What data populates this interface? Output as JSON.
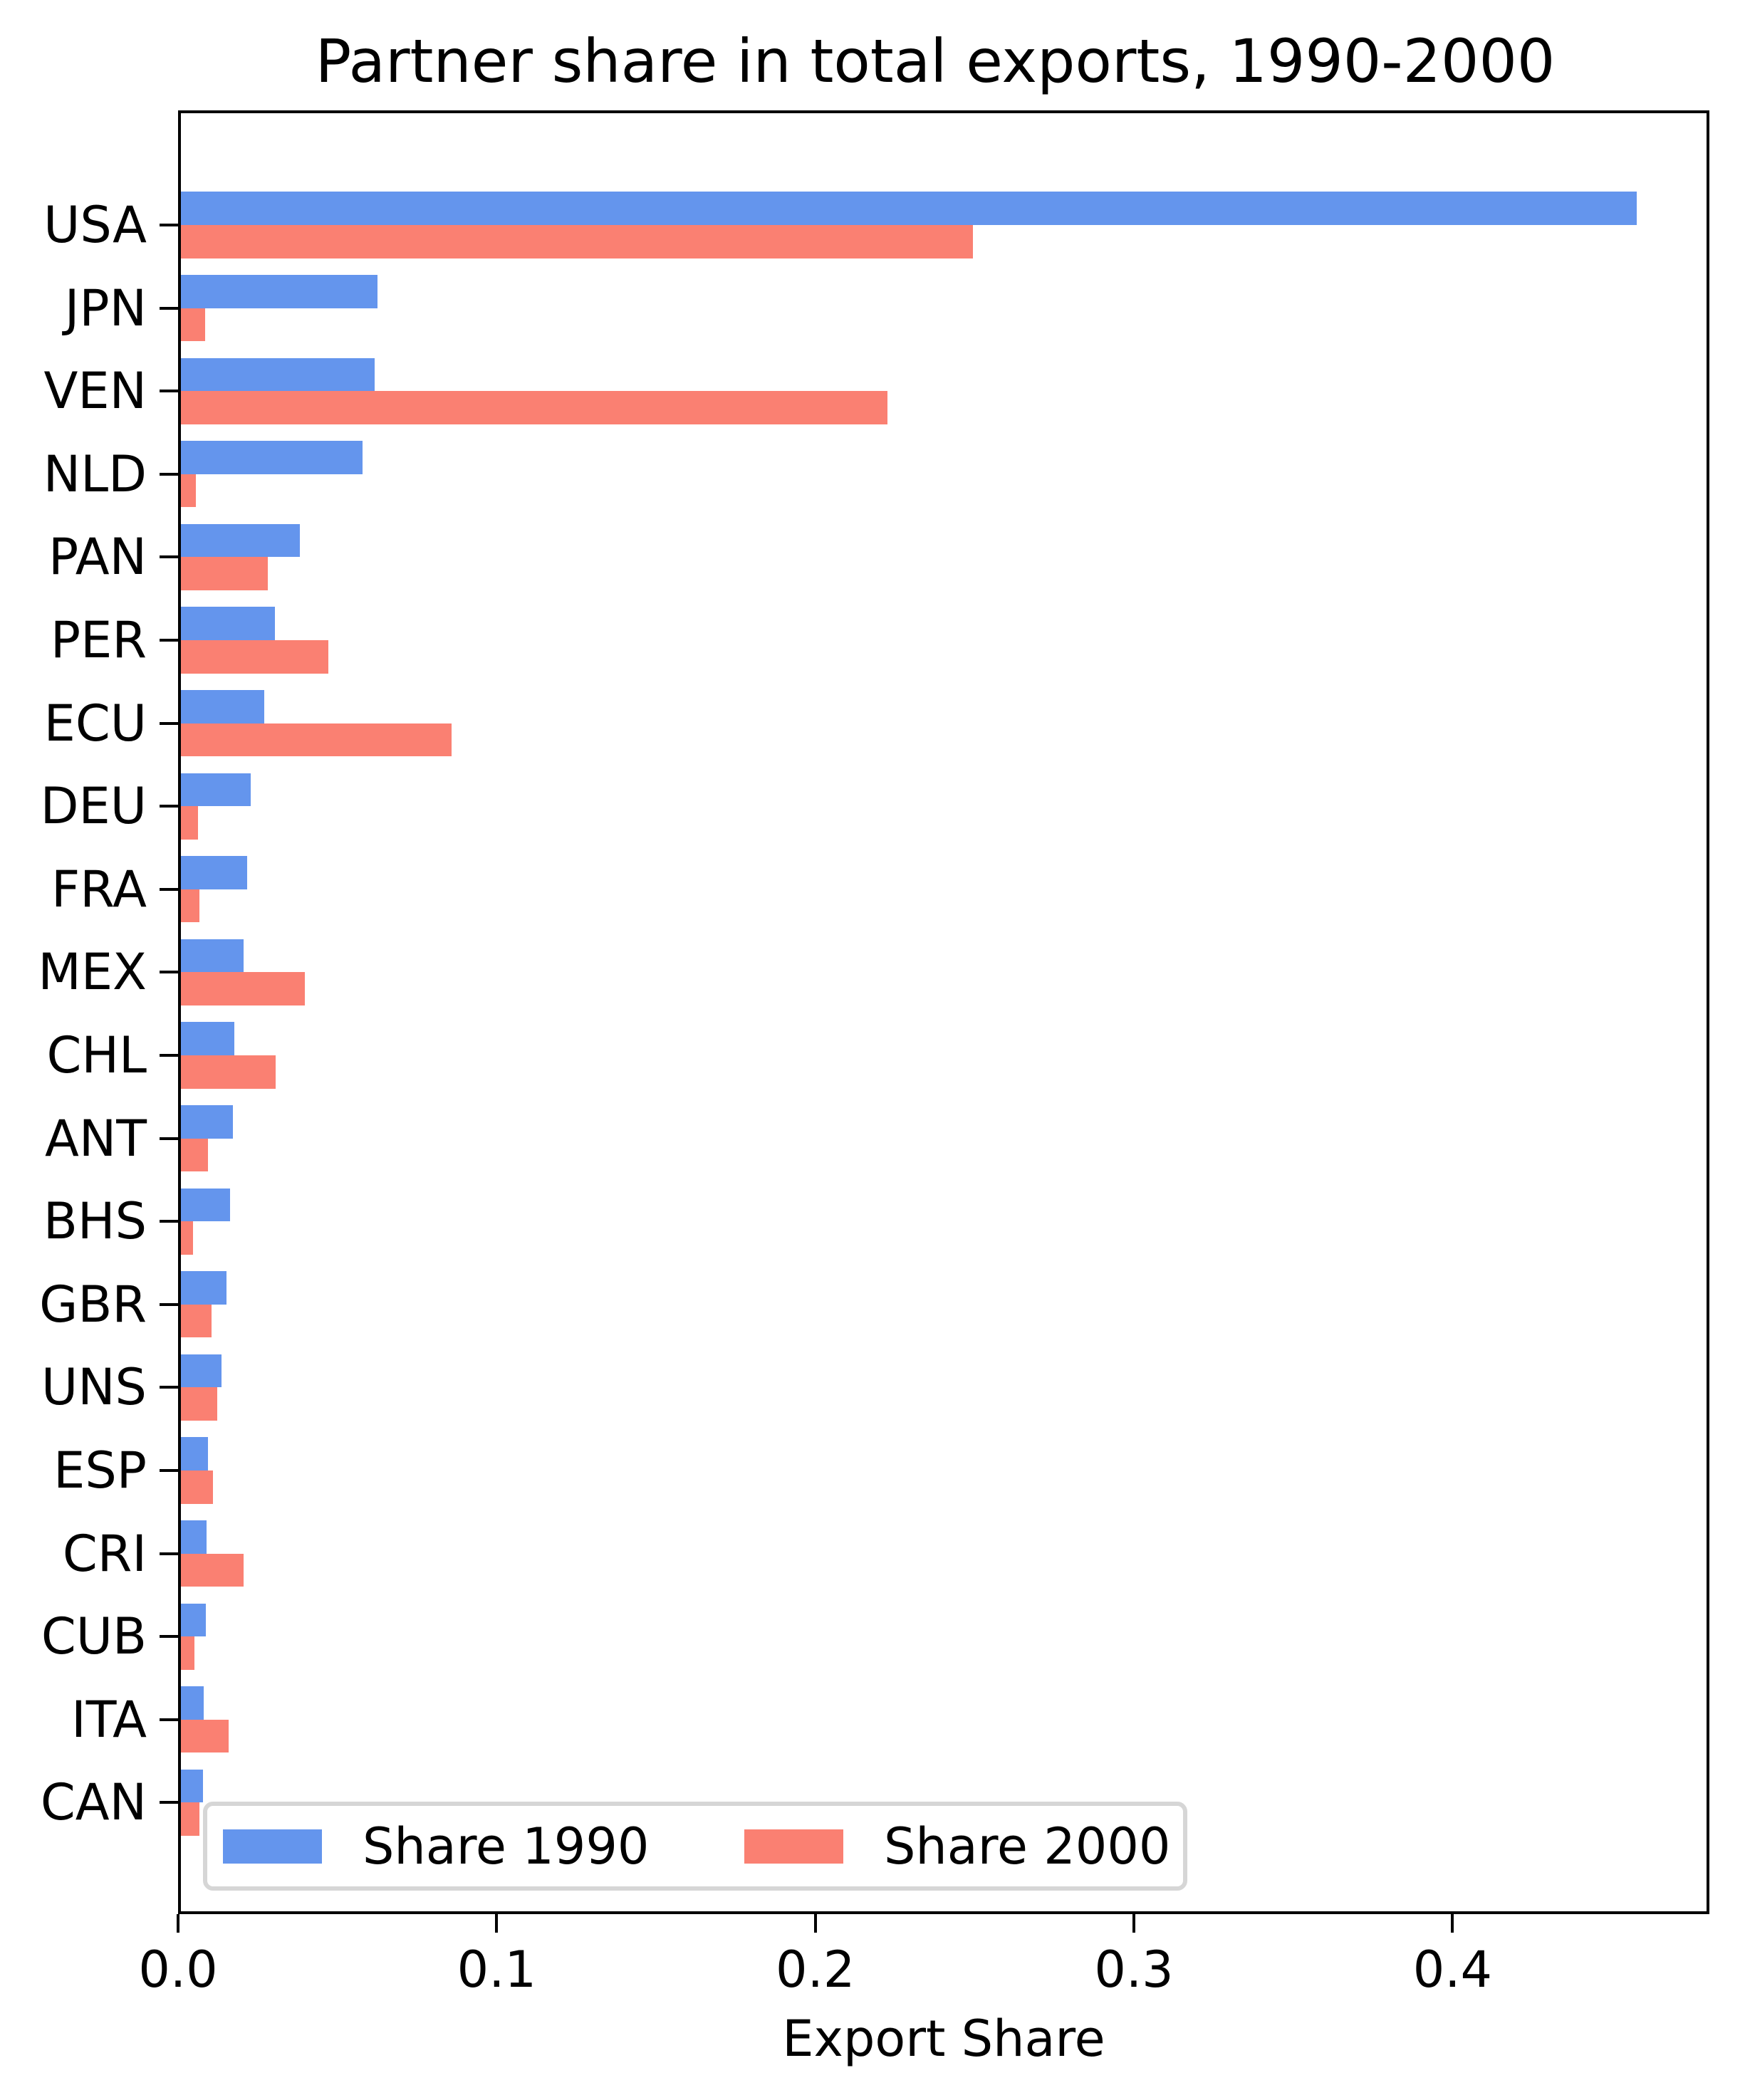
{
  "chart_data": {
    "type": "bar",
    "orientation": "horizontal",
    "title": "Partner share in total exports, 1990-2000",
    "xlabel": "Export Share",
    "ylabel": "",
    "xlim": [
      0,
      0.4806
    ],
    "xticks": [
      0.0,
      0.1,
      0.2,
      0.3,
      0.4
    ],
    "xtick_labels": [
      "0.0",
      "0.1",
      "0.2",
      "0.3",
      "0.4"
    ],
    "grid": false,
    "legend_position": "lower left",
    "categories": [
      "USA",
      "JPN",
      "VEN",
      "NLD",
      "PAN",
      "PER",
      "ECU",
      "DEU",
      "FRA",
      "MEX",
      "CHL",
      "ANT",
      "BHS",
      "GBR",
      "UNS",
      "ESP",
      "CRI",
      "CUB",
      "ITA",
      "CAN"
    ],
    "series": [
      {
        "name": "Share 1990",
        "color": "#6495ED",
        "values": [
          0.4577,
          0.0627,
          0.0617,
          0.058,
          0.0383,
          0.0305,
          0.027,
          0.0229,
          0.0217,
          0.0205,
          0.0176,
          0.0173,
          0.0164,
          0.0151,
          0.0137,
          0.0095,
          0.009,
          0.0088,
          0.0081,
          0.0079
        ]
      },
      {
        "name": "Share 2000",
        "color": "#FA8072",
        "values": [
          0.2494,
          0.0085,
          0.2226,
          0.0056,
          0.0282,
          0.0471,
          0.0858,
          0.0063,
          0.0068,
          0.0399,
          0.0307,
          0.0095,
          0.0048,
          0.0106,
          0.0122,
          0.011,
          0.0205,
          0.0052,
          0.0158,
          0.0068
        ]
      }
    ]
  },
  "legend": {
    "items": [
      {
        "label": "Share 1990",
        "color": "#6495ED"
      },
      {
        "label": "Share 2000",
        "color": "#FA8072"
      }
    ]
  }
}
